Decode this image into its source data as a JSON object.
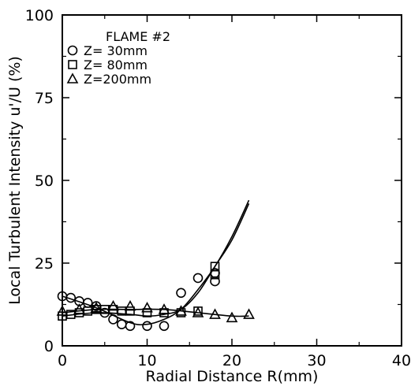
{
  "chart_data": {
    "type": "scatter",
    "title": "",
    "xlabel": "Radial Distance R(mm)",
    "ylabel": "Local Turbulent Intensity u'/U (%)",
    "xlim": [
      0,
      40
    ],
    "ylim": [
      0,
      100
    ],
    "x_ticks": [
      "0",
      "10",
      "20",
      "30",
      "40"
    ],
    "y_ticks": [
      "0",
      "25",
      "50",
      "75",
      "100"
    ],
    "legend_title": "FLAME #2",
    "legend_position": "top-left",
    "grid": false,
    "series": [
      {
        "name": "Z= 30mm",
        "marker": "circle",
        "points": [
          [
            0,
            15
          ],
          [
            1,
            14.5
          ],
          [
            2,
            13.5
          ],
          [
            3,
            13
          ],
          [
            4,
            12
          ],
          [
            5,
            10
          ],
          [
            6,
            8
          ],
          [
            7,
            6.5
          ],
          [
            8,
            6
          ],
          [
            10,
            6
          ],
          [
            12,
            6
          ],
          [
            14,
            16
          ],
          [
            16,
            20.5
          ],
          [
            18,
            22
          ],
          [
            18,
            19.5
          ]
        ]
      },
      {
        "name": "Z= 80mm",
        "marker": "square",
        "points": [
          [
            0,
            9
          ],
          [
            1,
            9.5
          ],
          [
            2,
            10
          ],
          [
            3,
            10.5
          ],
          [
            4,
            11
          ],
          [
            5,
            11
          ],
          [
            6,
            11
          ],
          [
            7,
            10.5
          ],
          [
            8,
            10.5
          ],
          [
            10,
            10
          ],
          [
            12,
            10
          ],
          [
            14,
            10
          ],
          [
            16,
            10.5
          ],
          [
            18,
            24
          ],
          [
            18,
            21.5
          ]
        ]
      },
      {
        "name": "Z=200mm",
        "marker": "triangle",
        "points": [
          [
            0,
            10.5
          ],
          [
            2,
            11
          ],
          [
            4,
            11.5
          ],
          [
            6,
            12
          ],
          [
            8,
            12
          ],
          [
            10,
            11.5
          ],
          [
            12,
            11
          ],
          [
            14,
            10.5
          ],
          [
            16,
            10
          ],
          [
            18,
            9.5
          ],
          [
            20,
            8.5
          ],
          [
            22,
            9.5
          ]
        ]
      }
    ],
    "fit_curves": [
      {
        "series": "Z= 30mm",
        "points": [
          [
            0,
            15
          ],
          [
            4,
            11.5
          ],
          [
            8,
            7
          ],
          [
            10,
            6.5
          ],
          [
            12,
            8
          ],
          [
            14,
            11
          ],
          [
            16,
            17
          ],
          [
            18,
            24
          ],
          [
            20,
            33
          ],
          [
            22,
            44
          ]
        ]
      },
      {
        "series": "Z= 80mm",
        "points": [
          [
            0,
            9
          ],
          [
            4,
            10
          ],
          [
            8,
            9.5
          ],
          [
            10,
            9
          ],
          [
            12,
            9.5
          ],
          [
            14,
            11
          ],
          [
            16,
            16
          ],
          [
            18,
            24
          ],
          [
            20,
            32
          ],
          [
            22,
            43
          ]
        ]
      },
      {
        "series": "Z=200mm",
        "points": [
          [
            0,
            10
          ],
          [
            4,
            11
          ],
          [
            8,
            11
          ],
          [
            12,
            11
          ],
          [
            16,
            10
          ],
          [
            20,
            9
          ],
          [
            22,
            9
          ]
        ]
      }
    ]
  }
}
